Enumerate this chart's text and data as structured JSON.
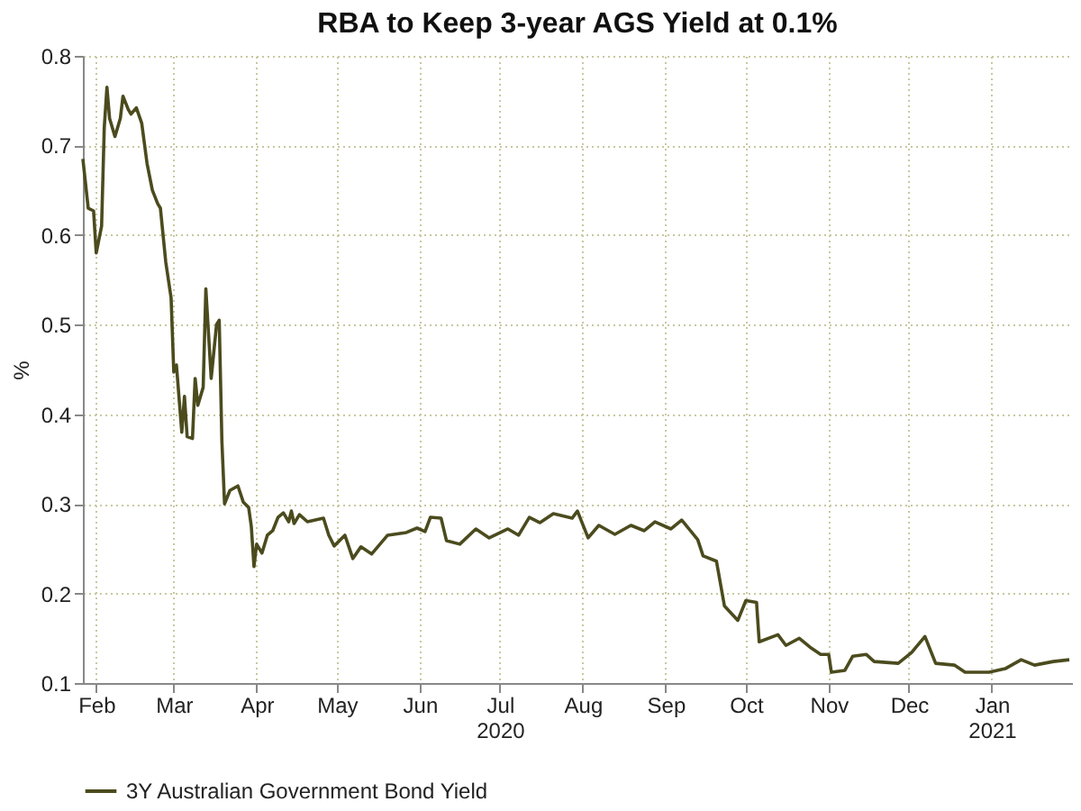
{
  "chart_data": {
    "type": "line",
    "title": "RBA to Keep 3-year AGS Yield at 0.1%",
    "ylabel": "%",
    "x": [
      "2020-01-27",
      "2020-01-29",
      "2020-01-31",
      "2020-02-01",
      "2020-02-03",
      "2020-02-04",
      "2020-02-05",
      "2020-02-06",
      "2020-02-08",
      "2020-02-10",
      "2020-02-11",
      "2020-02-13",
      "2020-02-14",
      "2020-02-16",
      "2020-02-18",
      "2020-02-20",
      "2020-02-22",
      "2020-02-24",
      "2020-02-25",
      "2020-02-27",
      "2020-02-29",
      "2020-03-01",
      "2020-03-02",
      "2020-03-04",
      "2020-03-05",
      "2020-03-06",
      "2020-03-08",
      "2020-03-09",
      "2020-03-10",
      "2020-03-12",
      "2020-03-13",
      "2020-03-15",
      "2020-03-17",
      "2020-03-18",
      "2020-03-19",
      "2020-03-20",
      "2020-03-22",
      "2020-03-25",
      "2020-03-27",
      "2020-03-29",
      "2020-03-30",
      "2020-03-31",
      "2020-04-01",
      "2020-04-03",
      "2020-04-05",
      "2020-04-07",
      "2020-04-09",
      "2020-04-11",
      "2020-04-13",
      "2020-04-14",
      "2020-04-15",
      "2020-04-17",
      "2020-04-20",
      "2020-04-26",
      "2020-04-28",
      "2020-04-30",
      "2020-05-04",
      "2020-05-07",
      "2020-05-10",
      "2020-05-14",
      "2020-05-20",
      "2020-05-27",
      "2020-05-31",
      "2020-06-03",
      "2020-06-05",
      "2020-06-09",
      "2020-06-11",
      "2020-06-16",
      "2020-06-22",
      "2020-06-27",
      "2020-07-04",
      "2020-07-08",
      "2020-07-12",
      "2020-07-16",
      "2020-07-21",
      "2020-07-28",
      "2020-07-30",
      "2020-08-03",
      "2020-08-07",
      "2020-08-13",
      "2020-08-19",
      "2020-08-24",
      "2020-08-28",
      "2020-09-03",
      "2020-09-07",
      "2020-09-13",
      "2020-09-15",
      "2020-09-20",
      "2020-09-23",
      "2020-09-28",
      "2020-10-01",
      "2020-10-05",
      "2020-10-06",
      "2020-10-13",
      "2020-10-16",
      "2020-10-21",
      "2020-10-25",
      "2020-10-29",
      "2020-11-01",
      "2020-11-02",
      "2020-11-07",
      "2020-11-10",
      "2020-11-15",
      "2020-11-18",
      "2020-11-27",
      "2020-12-02",
      "2020-12-07",
      "2020-12-11",
      "2020-12-18",
      "2020-12-22",
      "2020-12-31",
      "2021-01-06",
      "2021-01-12",
      "2021-01-17",
      "2021-01-24",
      "2021-01-30"
    ],
    "series": [
      {
        "name": "3Y Australian Government Bond Yield",
        "color": "#4b4b1e",
        "values": [
          0.685,
          0.63,
          0.627,
          0.58,
          0.61,
          0.72,
          0.765,
          0.73,
          0.71,
          0.73,
          0.755,
          0.74,
          0.735,
          0.742,
          0.725,
          0.68,
          0.65,
          0.635,
          0.63,
          0.57,
          0.53,
          0.447,
          0.455,
          0.38,
          0.42,
          0.375,
          0.373,
          0.44,
          0.41,
          0.43,
          0.54,
          0.44,
          0.5,
          0.505,
          0.37,
          0.3,
          0.315,
          0.32,
          0.302,
          0.296,
          0.275,
          0.23,
          0.255,
          0.245,
          0.265,
          0.27,
          0.285,
          0.29,
          0.28,
          0.292,
          0.278,
          0.288,
          0.28,
          0.284,
          0.265,
          0.253,
          0.265,
          0.239,
          0.252,
          0.244,
          0.265,
          0.268,
          0.273,
          0.269,
          0.285,
          0.284,
          0.259,
          0.255,
          0.272,
          0.262,
          0.272,
          0.265,
          0.285,
          0.279,
          0.289,
          0.284,
          0.292,
          0.262,
          0.276,
          0.266,
          0.276,
          0.27,
          0.28,
          0.272,
          0.282,
          0.26,
          0.242,
          0.236,
          0.186,
          0.17,
          0.192,
          0.19,
          0.146,
          0.154,
          0.142,
          0.15,
          0.14,
          0.132,
          0.132,
          0.112,
          0.114,
          0.13,
          0.132,
          0.124,
          0.122,
          0.134,
          0.152,
          0.122,
          0.12,
          0.112,
          0.112,
          0.116,
          0.126,
          0.12,
          0.124,
          0.126
        ]
      }
    ],
    "xlim": [
      "2020-01-27",
      "2021-01-31"
    ],
    "xticks": [
      {
        "value": "2020-02-01",
        "label": "Feb"
      },
      {
        "value": "2020-03-01",
        "label": "Mar"
      },
      {
        "value": "2020-04-01",
        "label": "Apr"
      },
      {
        "value": "2020-05-01",
        "label": "May"
      },
      {
        "value": "2020-06-01",
        "label": "Jun"
      },
      {
        "value": "2020-07-01",
        "label": "Jul\n2020"
      },
      {
        "value": "2020-08-01",
        "label": "Aug"
      },
      {
        "value": "2020-09-01",
        "label": "Sep"
      },
      {
        "value": "2020-10-01",
        "label": "Oct"
      },
      {
        "value": "2020-11-01",
        "label": "Nov"
      },
      {
        "value": "2020-12-01",
        "label": "Dec"
      },
      {
        "value": "2021-01-01",
        "label": "Jan\n2021"
      }
    ],
    "ylim": [
      0.1,
      0.8
    ],
    "yticks": [
      0.1,
      0.2,
      0.3,
      0.4,
      0.5,
      0.6,
      0.7,
      0.8
    ],
    "grid": true,
    "legend": "bottom",
    "marker": "none",
    "line_style": "solid"
  }
}
